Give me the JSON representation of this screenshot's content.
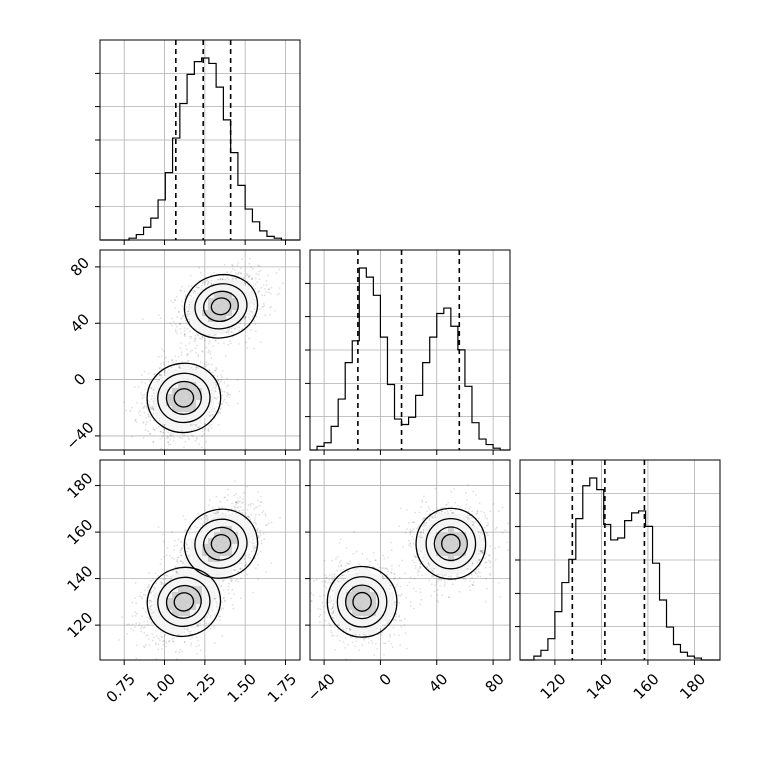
{
  "chart_data": {
    "type": "corner",
    "params": [
      "",
      "",
      ""
    ],
    "grid": true,
    "ticks": {
      "p0": {
        "values": [
          0.75,
          1.0,
          1.25,
          1.5,
          1.75
        ],
        "labels": [
          "0.75",
          "1.00",
          "1.25",
          "1.50",
          "1.75"
        ],
        "range": [
          0.6,
          1.84
        ]
      },
      "p1": {
        "values": [
          -40,
          0,
          40,
          80
        ],
        "labels": [
          "−40",
          "0",
          "40",
          "80"
        ],
        "range": [
          -50,
          92
        ]
      },
      "p2": {
        "values": [
          120,
          140,
          160,
          180
        ],
        "labels": [
          "120",
          "140",
          "160",
          "180"
        ],
        "range": [
          105,
          191
        ]
      }
    },
    "quantiles": {
      "p0": [
        1.07,
        1.24,
        1.41
      ],
      "p1": [
        -16,
        15,
        56
      ],
      "p2": [
        127.5,
        141.5,
        158.5
      ]
    },
    "histograms": {
      "p0": {
        "bin_edges": [
          0.6,
          0.645,
          0.69,
          0.735,
          0.78,
          0.825,
          0.87,
          0.915,
          0.96,
          1.005,
          1.05,
          1.095,
          1.14,
          1.185,
          1.23,
          1.275,
          1.32,
          1.365,
          1.41,
          1.455,
          1.5,
          1.545,
          1.59,
          1.635,
          1.68,
          1.725,
          1.77,
          1.815,
          1.84
        ],
        "counts": [
          0,
          0,
          0,
          0,
          1,
          3,
          7,
          12,
          22,
          37,
          56,
          75,
          91,
          98,
          100,
          97,
          84,
          66,
          48,
          30,
          17,
          10,
          5,
          2,
          1,
          0,
          0,
          0
        ]
      },
      "p1": {
        "bin_edges": [
          -50,
          -45,
          -40,
          -35,
          -30,
          -25,
          -20,
          -15,
          -10,
          -5,
          0,
          5,
          10,
          15,
          20,
          25,
          30,
          35,
          40,
          45,
          50,
          55,
          60,
          65,
          70,
          75,
          80,
          85,
          92
        ],
        "counts": [
          0,
          2,
          4,
          13,
          28,
          48,
          60,
          100,
          95,
          85,
          62,
          36,
          17,
          14,
          18,
          30,
          48,
          62,
          75,
          78,
          68,
          55,
          35,
          15,
          6,
          3,
          1,
          0
        ]
      },
      "p2": {
        "bin_edges": [
          105,
          108,
          111,
          114,
          117,
          120,
          123,
          126,
          129,
          132,
          135,
          138,
          141,
          144,
          147,
          150,
          153,
          156,
          159,
          162,
          165,
          168,
          171,
          174,
          177,
          180,
          183,
          186,
          191
        ],
        "counts": [
          0,
          0,
          2,
          5,
          11,
          25,
          40,
          52,
          73,
          90,
          94,
          88,
          70,
          62,
          63,
          72,
          76,
          77,
          69,
          50,
          31,
          17,
          8,
          4,
          2,
          1,
          0,
          0
        ]
      }
    },
    "scatter_2d": [
      {
        "x": "p0",
        "y": "p1",
        "clusters": [
          {
            "mean": [
              1.12,
              -13
            ],
            "sd": [
              0.12,
              13
            ],
            "corr": 0.15,
            "weight": 0.5
          },
          {
            "mean": [
              1.35,
              52
            ],
            "sd": [
              0.12,
              12
            ],
            "corr": 0.3,
            "weight": 0.5
          }
        ]
      },
      {
        "x": "p0",
        "y": "p2",
        "clusters": [
          {
            "mean": [
              1.12,
              130
            ],
            "sd": [
              0.12,
              8
            ],
            "corr": 0.35,
            "weight": 0.5
          },
          {
            "mean": [
              1.35,
              155
            ],
            "sd": [
              0.12,
              8
            ],
            "corr": 0.35,
            "weight": 0.5
          }
        ]
      },
      {
        "x": "p1",
        "y": "p2",
        "clusters": [
          {
            "mean": [
              -13,
              130
            ],
            "sd": [
              13,
              8
            ],
            "corr": 0.0,
            "weight": 0.5
          },
          {
            "mean": [
              50,
              155
            ],
            "sd": [
              13,
              8
            ],
            "corr": 0.0,
            "weight": 0.5
          }
        ]
      }
    ],
    "colors": {
      "line": "#000000",
      "grid": "#b0b0b0",
      "points": "#000000",
      "fill_levels": [
        "#f5f5f5",
        "#cfcfcf",
        "#9a9a9a",
        "#5f5f5f"
      ]
    }
  }
}
